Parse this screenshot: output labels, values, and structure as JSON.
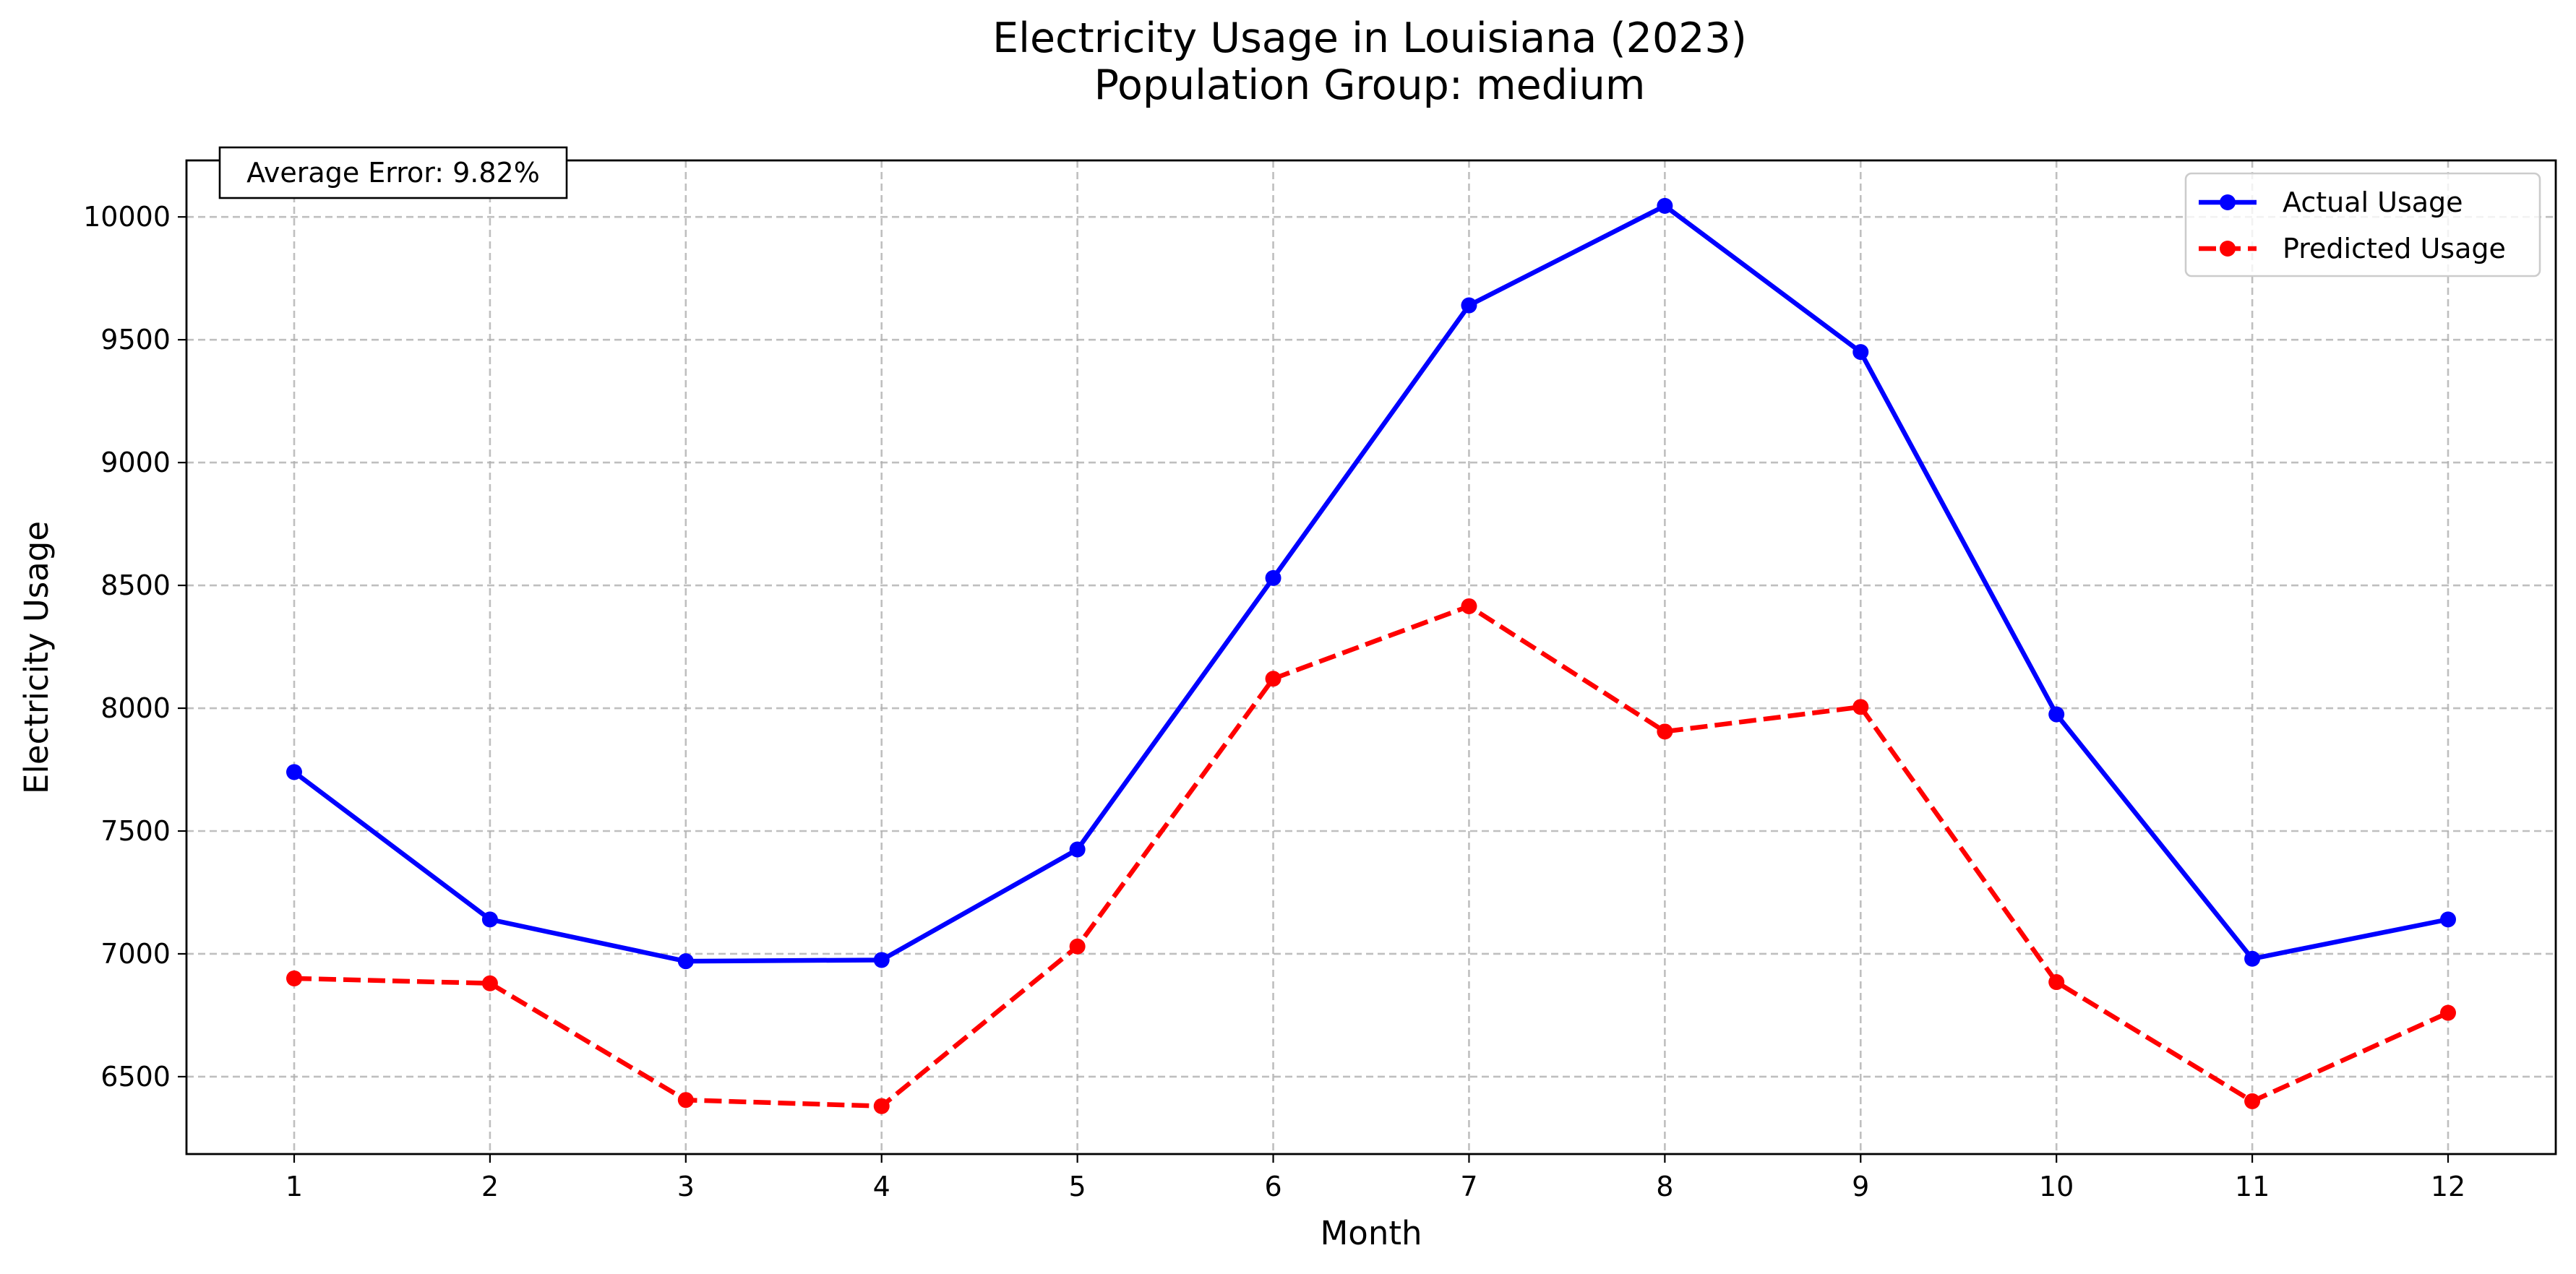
{
  "chart_data": {
    "type": "line",
    "title": "Electricity Usage in Louisiana (2023)",
    "subtitle": "Population Group: medium",
    "xlabel": "Month",
    "ylabel": "Electricity Usage",
    "x": [
      1,
      2,
      3,
      4,
      5,
      6,
      7,
      8,
      9,
      10,
      11,
      12
    ],
    "x_tick_labels": [
      "1",
      "2",
      "3",
      "4",
      "5",
      "6",
      "7",
      "8",
      "9",
      "10",
      "11",
      "12"
    ],
    "xlim": [
      0.45,
      12.55
    ],
    "ylim": [
      6185,
      10230
    ],
    "y_ticks": [
      6500,
      7000,
      7500,
      8000,
      8500,
      9000,
      9500,
      10000
    ],
    "y_tick_labels": [
      "6500",
      "7000",
      "7500",
      "8000",
      "8500",
      "9000",
      "9500",
      "10000"
    ],
    "grid": true,
    "legend_position": "top-right",
    "annotation": "Average Error: 9.82%",
    "series": [
      {
        "name": "Actual Usage",
        "color": "#0000ff",
        "line_style": "solid",
        "marker": "circle",
        "values": [
          7740,
          7140,
          6970,
          6975,
          7425,
          8530,
          9640,
          10045,
          9450,
          7975,
          6980,
          7140
        ]
      },
      {
        "name": "Predicted Usage",
        "color": "#ff0000",
        "line_style": "dashed",
        "marker": "circle",
        "values": [
          6900,
          6880,
          6405,
          6380,
          7030,
          8120,
          8415,
          7905,
          8005,
          6885,
          6400,
          6760
        ]
      }
    ]
  }
}
